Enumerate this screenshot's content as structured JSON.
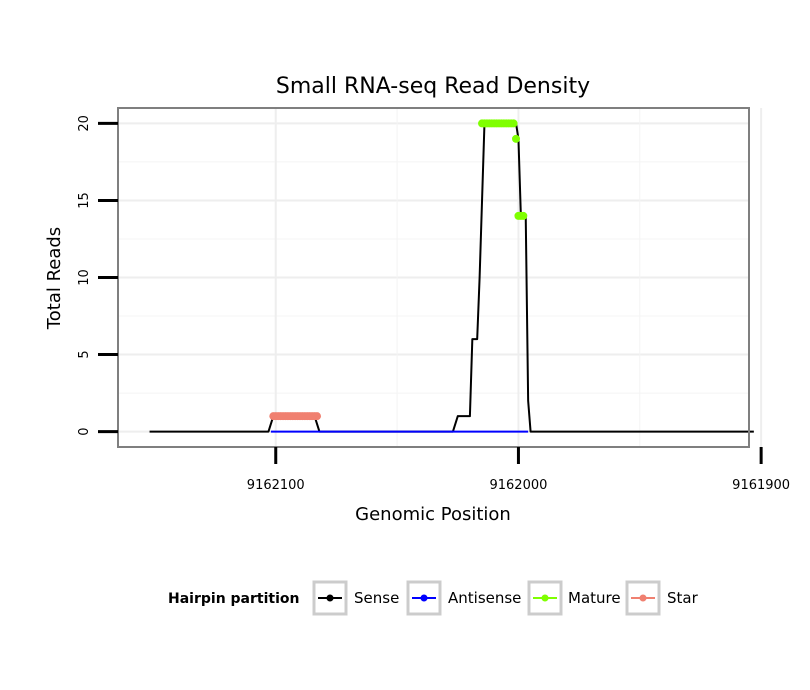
{
  "chart_data": {
    "type": "line",
    "title": "Small RNA-seq Read Density",
    "xlabel": "Genomic Position",
    "ylabel": "Total Reads",
    "xlim": [
      9162165,
      9161905
    ],
    "ylim": [
      -1,
      21
    ],
    "x_reversed": true,
    "x_ticks": [
      9162100,
      9162000,
      9161900
    ],
    "x_tick_labels": [
      "9162100",
      "9162000",
      "9161900"
    ],
    "y_ticks": [
      0,
      5,
      10,
      15,
      20
    ],
    "y_tick_labels": [
      "0",
      "5",
      "10",
      "15",
      "20"
    ],
    "grid": true,
    "legend": {
      "title": "Hairpin partition",
      "placement": "bottom",
      "entries": [
        {
          "label": "Sense",
          "color": "#000000"
        },
        {
          "label": "Antisense",
          "color": "#0000ff"
        },
        {
          "label": "Mature",
          "color": "#7fff00"
        },
        {
          "label": "Star",
          "color": "#f08070"
        }
      ]
    },
    "series": [
      {
        "name": "Sense",
        "color": "#000000",
        "style": "line",
        "points": [
          [
            9162152,
            0
          ],
          [
            9162103,
            0
          ],
          [
            9162101,
            1
          ],
          [
            9162084,
            1
          ],
          [
            9162082,
            0
          ],
          [
            9162027,
            0
          ],
          [
            9162025,
            1
          ],
          [
            9162020,
            1
          ],
          [
            9162019,
            6
          ],
          [
            9162017,
            6
          ],
          [
            9162016,
            10
          ],
          [
            9162014,
            20
          ],
          [
            9162001,
            20
          ],
          [
            9162000,
            19
          ],
          [
            9161999,
            14
          ],
          [
            9161997,
            14
          ],
          [
            9161996,
            2
          ],
          [
            9161995,
            0
          ],
          [
            9161903,
            0
          ]
        ]
      },
      {
        "name": "Antisense",
        "color": "#0000ff",
        "style": "line",
        "points": [
          [
            9162102,
            0
          ],
          [
            9162082,
            0
          ],
          [
            9162027,
            0
          ],
          [
            9161996,
            0
          ]
        ]
      },
      {
        "name": "Mature",
        "color": "#7fff00",
        "style": "points",
        "points": [
          [
            9162015,
            20
          ],
          [
            9162014,
            20
          ],
          [
            9162013,
            20
          ],
          [
            9162012,
            20
          ],
          [
            9162011,
            20
          ],
          [
            9162010,
            20
          ],
          [
            9162009,
            20
          ],
          [
            9162008,
            20
          ],
          [
            9162007,
            20
          ],
          [
            9162006,
            20
          ],
          [
            9162005,
            20
          ],
          [
            9162004,
            20
          ],
          [
            9162003,
            20
          ],
          [
            9162002,
            20
          ],
          [
            9162001,
            19
          ],
          [
            9162000,
            14
          ],
          [
            9161999,
            14
          ],
          [
            9161998,
            14
          ]
        ]
      },
      {
        "name": "Star",
        "color": "#f08070",
        "style": "points",
        "points": [
          [
            9162101,
            1
          ],
          [
            9162100,
            1
          ],
          [
            9162099,
            1
          ],
          [
            9162098,
            1
          ],
          [
            9162097,
            1
          ],
          [
            9162096,
            1
          ],
          [
            9162095,
            1
          ],
          [
            9162094,
            1
          ],
          [
            9162093,
            1
          ],
          [
            9162092,
            1
          ],
          [
            9162091,
            1
          ],
          [
            9162090,
            1
          ],
          [
            9162089,
            1
          ],
          [
            9162088,
            1
          ],
          [
            9162087,
            1
          ],
          [
            9162086,
            1
          ],
          [
            9162085,
            1
          ],
          [
            9162084,
            1
          ],
          [
            9162083,
            1
          ]
        ]
      }
    ]
  }
}
